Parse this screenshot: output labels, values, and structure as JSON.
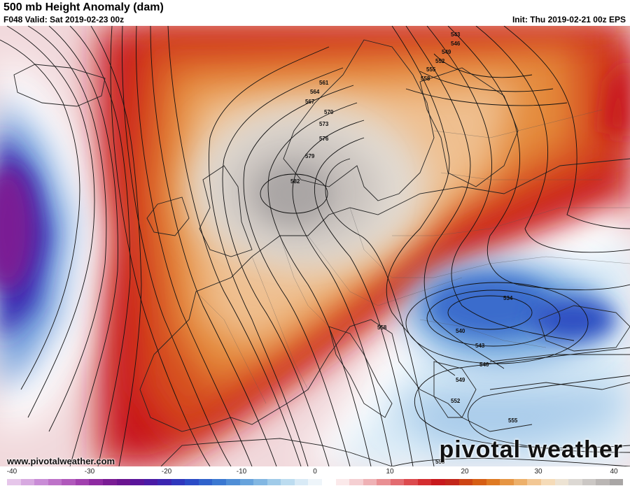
{
  "header": {
    "title": "500 mb Height Anomaly (dam)",
    "valid": "F048 Valid: Sat 2019-02-23 00z",
    "init": "Init: Thu 2019-02-21 00z EPS"
  },
  "contour_labels": [
    "543",
    "546",
    "549",
    "552",
    "555",
    "558",
    "561",
    "564",
    "567",
    "570",
    "573",
    "576",
    "579",
    "582",
    "534",
    "540",
    "543",
    "546",
    "549",
    "552",
    "555",
    "558",
    "558"
  ],
  "footer": {
    "website": "www.pivotalweather.com",
    "brand": "pivotal weather"
  },
  "colorbar": {
    "ticks": [
      "-40",
      "-30",
      "-20",
      "-10",
      "0",
      "10",
      "20",
      "30",
      "40"
    ],
    "colors": [
      "#e6c6ea",
      "#d7a9e0",
      "#c98cd6",
      "#bd72c8",
      "#b058bb",
      "#a13fae",
      "#8e2aa1",
      "#7a1c94",
      "#6a1490",
      "#5a149a",
      "#4a1aa5",
      "#3b25b1",
      "#2f37bd",
      "#2a4bc6",
      "#2f62cc",
      "#3a78d1",
      "#4f8ed6",
      "#67a3dc",
      "#82b7e2",
      "#a0cbe9",
      "#bcdcf0",
      "#d8eaf6",
      "#eef5fa",
      "#ffffff",
      "#fbe9ea",
      "#f5cfd2",
      "#efb1b5",
      "#e98f93",
      "#e36b70",
      "#dc4a4e",
      "#d42d30",
      "#c8191d",
      "#c2261a",
      "#cd4414",
      "#d65e14",
      "#df7a22",
      "#e69543",
      "#edb06a",
      "#f2c794",
      "#f5dbb8",
      "#ede3d3",
      "#dcd8d3",
      "#cbc7c4",
      "#bab6b4",
      "#a9a6a5"
    ]
  }
}
